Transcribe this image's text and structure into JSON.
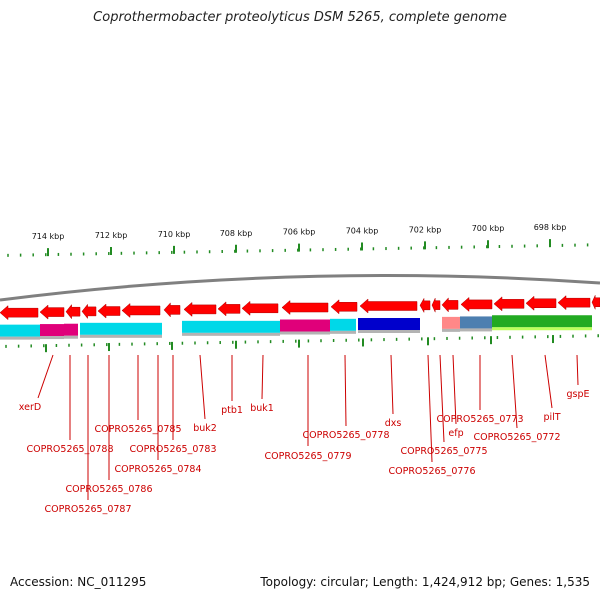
{
  "title": "Coprothermobacter proteolyticus DSM 5265, complete genome",
  "footer": {
    "accession": "Accession: NC_011295",
    "summary": "Topology: circular; Length: 1,424,912 bp; Genes: 1,535"
  },
  "ruler_labels": [
    "714 kbp",
    "712 kbp",
    "710 kbp",
    "708 kbp",
    "706 kbp",
    "704 kbp",
    "702 kbp",
    "700 kbp",
    "698 kbp"
  ],
  "gene_labels": [
    "xerD",
    "COPRO5265_0788",
    "COPRO5265_0787",
    "COPRO5265_0786",
    "COPRO5265_0785",
    "COPRO5265_0784",
    "COPRO5265_0783",
    "buk2",
    "ptb1",
    "buk1",
    "COPRO5265_0779",
    "COPRO5265_0778",
    "dxs",
    "COPRO5265_0776",
    "COPRO5265_0775",
    "efp",
    "COPRO5265_0773",
    "COPRO5265_0772",
    "pilT",
    "gspE"
  ],
  "colors": {
    "gene_arrow": "#ff0000",
    "cyan_band": "#00d8e8",
    "magenta_band": "#e0007a",
    "blue_band": "#0000cc",
    "green_band": "#22aa22",
    "lime_band": "#aaff33",
    "pink_band": "#ff8888",
    "steel_band": "#4d7fb0",
    "gray_band": "#a0a0a0",
    "backbone": "#808080",
    "tick": "#228b22",
    "label": "#cc0000"
  }
}
